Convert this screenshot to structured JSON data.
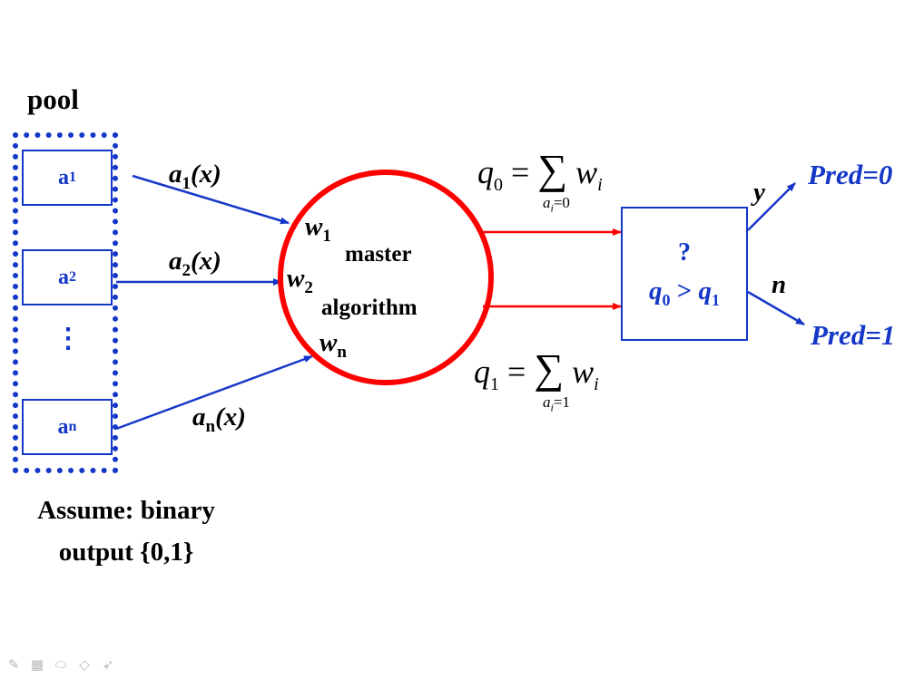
{
  "pool": {
    "title": "pool",
    "items": [
      {
        "base": "a",
        "sub": "1"
      },
      {
        "base": "a",
        "sub": "2"
      },
      {
        "base": "a",
        "sub": "n"
      }
    ],
    "ellipsis": "⋮"
  },
  "assumption": {
    "line1": "Assume: binary",
    "line2": "output {0,1}"
  },
  "inputs": [
    {
      "base": "a",
      "sub": "1",
      "arg": "(x)"
    },
    {
      "base": "a",
      "sub": "2",
      "arg": "(x)"
    },
    {
      "base": "a",
      "sub": "n",
      "arg": "(x)"
    }
  ],
  "weights": [
    {
      "base": "w",
      "sub": "1"
    },
    {
      "base": "w",
      "sub": "2"
    },
    {
      "base": "w",
      "sub": "n"
    }
  ],
  "master": {
    "line1": "master",
    "line2": "algorithm"
  },
  "formulas": {
    "q0": {
      "lhs": "q",
      "lhs_sub": "0",
      "eq": "=",
      "sum": "∑",
      "term": "w",
      "term_sub": "i",
      "cond": "a",
      "cond_sub": "i",
      "cond_val": "=0"
    },
    "q1": {
      "lhs": "q",
      "lhs_sub": "1",
      "eq": "=",
      "sum": "∑",
      "term": "w",
      "term_sub": "i",
      "cond": "a",
      "cond_sub": "i",
      "cond_val": "=1"
    }
  },
  "decision": {
    "question": "?",
    "cmp_left": "q",
    "cmp_left_sub": "0",
    "cmp_op": " > ",
    "cmp_right": "q",
    "cmp_right_sub": "1"
  },
  "branches": {
    "yes_label": "y",
    "no_label": "n",
    "pred_yes": "Pred=0",
    "pred_no": "Pred=1"
  },
  "colors": {
    "blue": "#1537c8",
    "red": "#ff0000",
    "black": "#111111"
  },
  "toolbar": {
    "icons": [
      "pen-icon",
      "grid-icon",
      "eraser-icon",
      "highlighter-icon",
      "pointer-icon"
    ]
  }
}
